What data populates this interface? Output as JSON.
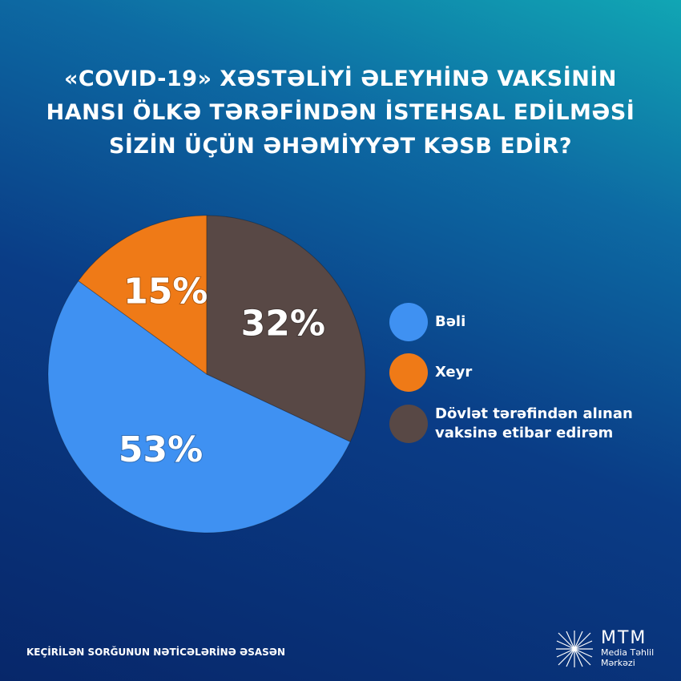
{
  "chart_data": {
    "type": "pie",
    "title": [
      "«COVID-19» XƏSTƏLİYİ ƏLEYHİNƏ VAKSİNİN",
      "HANSI ÖLKƏ TƏRƏFİNDƏN İSTEHSAL EDİLMƏSİ",
      "SİZİN ÜÇÜN ƏHƏMİYYƏT KƏSB EDİR?"
    ],
    "categories": [
      "Bəli",
      "Xeyr",
      "Dövlət tərəfindən alınan vaksinə etibar edirəm"
    ],
    "values": [
      53,
      15,
      32
    ],
    "value_labels": [
      "53%",
      "15%",
      "32%"
    ],
    "colors": [
      "#3f91f2",
      "#ef7a17",
      "#584845"
    ],
    "footnote": "KEÇİRİLƏN SORĞUNUN NƏTİCƏLƏRİNƏ ƏSASƏN",
    "logo": {
      "name": "MTM",
      "line1": "Media Təhlil",
      "line2": "Mərkəzi"
    }
  }
}
